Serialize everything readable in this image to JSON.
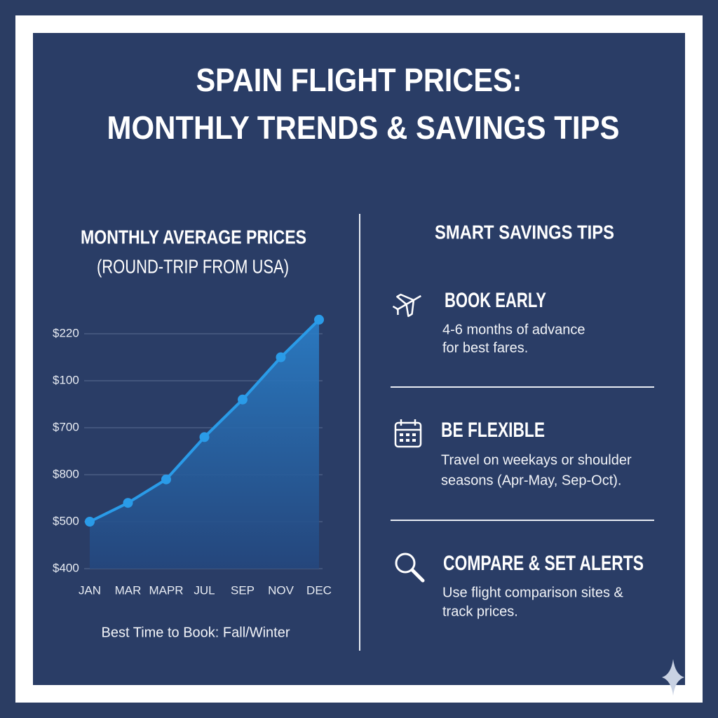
{
  "title_lines": [
    "SPAIN FLIGHT PRICES:",
    "MONTHLY TRENDS & SAVINGS TIPS"
  ],
  "chart_data": {
    "type": "line",
    "title_lines": [
      "MONTHLY AVERAGE PRICES",
      "(ROUND-TRIP FROM USA)"
    ],
    "categories": [
      "JAN",
      "MAR",
      "MAPR",
      "JUL",
      "SEP",
      "NOV",
      "DEC"
    ],
    "y_labels": [
      "$400",
      "$500",
      "$800",
      "$700",
      "$100",
      "$220"
    ],
    "values": [
      1.0,
      1.4,
      1.9,
      2.8,
      3.6,
      4.5,
      5.3
    ],
    "ylim": [
      0,
      5.5
    ],
    "color": "#2a9be8",
    "grid": true,
    "footnote": "Best Time to Book: Fall/Winter"
  },
  "tips": {
    "title": "SMART SAVINGS TIPS",
    "items": [
      {
        "heading": "BOOK EARLY",
        "lines": [
          "4-6 months of advance",
          "for best fares."
        ]
      },
      {
        "heading": "BE FLEXIBLE",
        "lines": [
          "Travel on weekays or shoulder",
          "seasons (Apr-May, Sep-Oct)."
        ]
      },
      {
        "heading": "COMPARE & SET ALERTS",
        "lines": [
          "Use flight comparison sites &",
          "track prices."
        ]
      }
    ]
  }
}
